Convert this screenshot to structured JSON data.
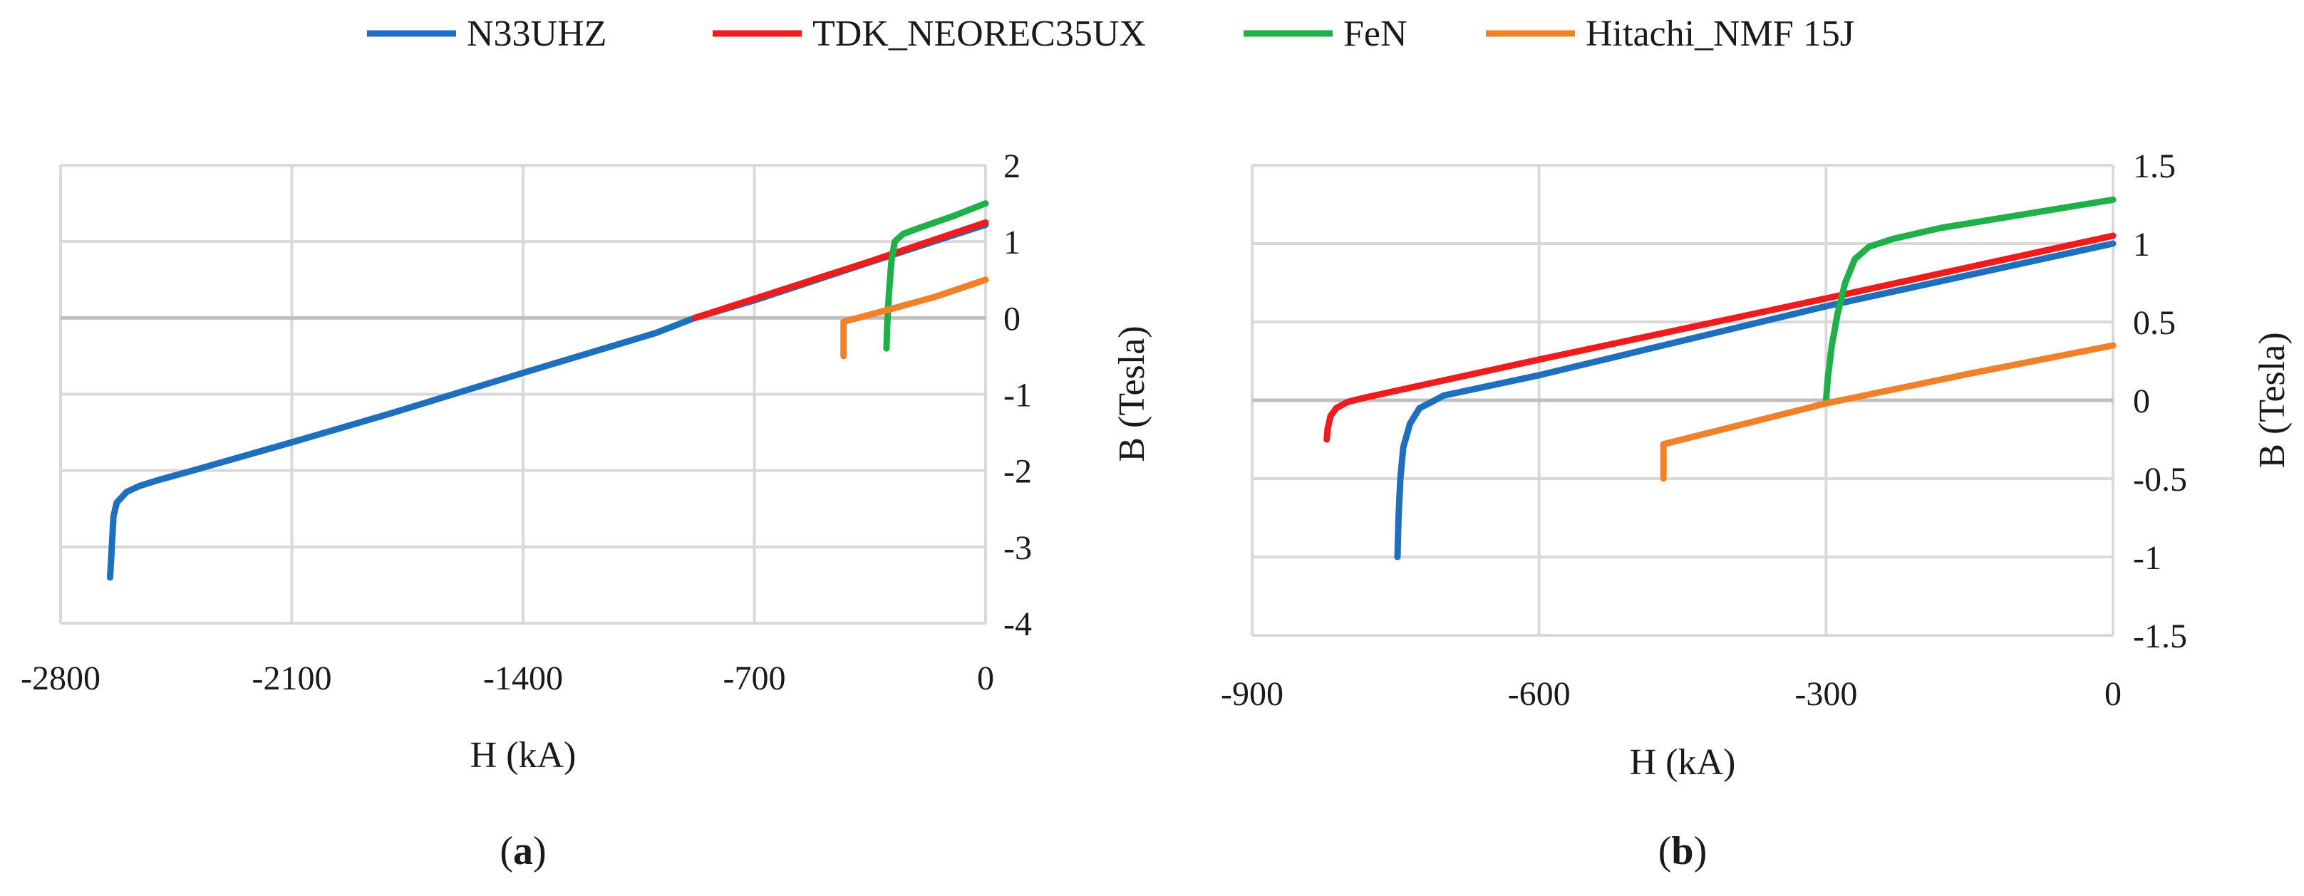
{
  "legend": [
    {
      "name": "N33UHZ",
      "color": "#1f6fbf"
    },
    {
      "name": "TDK_NEOREC35UX",
      "color": "#ee1c1c"
    },
    {
      "name": "FeN",
      "color": "#1fb04a"
    },
    {
      "name": "Hitachi_NMF 15J",
      "color": "#f0802a"
    }
  ],
  "chart_data": [
    {
      "type": "line",
      "caption": {
        "open": "(",
        "letter": "a",
        "close": ")"
      },
      "xlabel": "H (kA)",
      "ylabel": "B (Tesla)",
      "xlim": [
        -2800,
        0
      ],
      "ylim": [
        -4,
        2
      ],
      "xticks": [
        -2800,
        -2100,
        -1400,
        -700,
        0
      ],
      "yticks": [
        2,
        1,
        0,
        -1,
        -2,
        -3,
        -4
      ],
      "grid": true,
      "y_axis_side": "right",
      "series": [
        {
          "name": "N33UHZ",
          "color": "#1f6fbf",
          "points": [
            [
              -2650,
              -3.4
            ],
            [
              -2645,
              -3.0
            ],
            [
              -2640,
              -2.6
            ],
            [
              -2630,
              -2.42
            ],
            [
              -2600,
              -2.28
            ],
            [
              -2560,
              -2.2
            ],
            [
              -2500,
              -2.12
            ],
            [
              -2400,
              -2.0
            ],
            [
              -2100,
              -1.63
            ],
            [
              -1800,
              -1.25
            ],
            [
              -1400,
              -0.72
            ],
            [
              -1000,
              -0.2
            ],
            [
              -880,
              0.0
            ],
            [
              -700,
              0.23
            ],
            [
              -350,
              0.73
            ],
            [
              0,
              1.22
            ]
          ]
        },
        {
          "name": "TDK_NEOREC35UX",
          "color": "#ee1c1c",
          "points": [
            [
              -880,
              0.0
            ],
            [
              -700,
              0.25
            ],
            [
              -350,
              0.74
            ],
            [
              0,
              1.25
            ]
          ]
        },
        {
          "name": "FeN",
          "color": "#1fb04a",
          "points": [
            [
              -300,
              -0.4
            ],
            [
              -298,
              -0.1
            ],
            [
              -293,
              0.3
            ],
            [
              -285,
              0.75
            ],
            [
              -275,
              1.0
            ],
            [
              -250,
              1.1
            ],
            [
              -200,
              1.18
            ],
            [
              -100,
              1.33
            ],
            [
              0,
              1.5
            ]
          ]
        },
        {
          "name": "Hitachi_NMF 15J",
          "color": "#f0802a",
          "points": [
            [
              -430,
              -0.5
            ],
            [
              -430,
              -0.05
            ],
            [
              -300,
              0.1
            ],
            [
              -150,
              0.28
            ],
            [
              0,
              0.5
            ]
          ]
        }
      ]
    },
    {
      "type": "line",
      "caption": {
        "open": "(",
        "letter": "b",
        "close": ")"
      },
      "xlabel": "H (kA)",
      "ylabel": "B (Tesla)",
      "xlim": [
        -900,
        0
      ],
      "ylim": [
        -1.5,
        1.5
      ],
      "xticks": [
        -900,
        -600,
        -300,
        0
      ],
      "yticks": [
        "1.5",
        "1",
        "0.5",
        "0",
        "-0.5",
        "-1",
        "-1.5"
      ],
      "grid": true,
      "y_axis_side": "right",
      "series": [
        {
          "name": "N33UHZ",
          "color": "#1f6fbf",
          "points": [
            [
              -748,
              -1.0
            ],
            [
              -747,
              -0.75
            ],
            [
              -745,
              -0.5
            ],
            [
              -742,
              -0.3
            ],
            [
              -735,
              -0.15
            ],
            [
              -725,
              -0.05
            ],
            [
              -712,
              -0.01
            ],
            [
              -700,
              0.03
            ],
            [
              -600,
              0.16
            ],
            [
              -300,
              0.6
            ],
            [
              0,
              1.0
            ]
          ]
        },
        {
          "name": "TDK_NEOREC35UX",
          "color": "#ee1c1c",
          "points": [
            [
              -822,
              -0.25
            ],
            [
              -821,
              -0.18
            ],
            [
              -818,
              -0.1
            ],
            [
              -812,
              -0.05
            ],
            [
              -800,
              -0.01
            ],
            [
              -780,
              0.02
            ],
            [
              -600,
              0.26
            ],
            [
              -300,
              0.65
            ],
            [
              0,
              1.05
            ]
          ]
        },
        {
          "name": "FeN",
          "color": "#1fb04a",
          "points": [
            [
              -300,
              0.0
            ],
            [
              -298,
              0.15
            ],
            [
              -294,
              0.35
            ],
            [
              -288,
              0.55
            ],
            [
              -280,
              0.75
            ],
            [
              -270,
              0.9
            ],
            [
              -255,
              0.98
            ],
            [
              -230,
              1.03
            ],
            [
              -180,
              1.1
            ],
            [
              -100,
              1.18
            ],
            [
              0,
              1.28
            ]
          ]
        },
        {
          "name": "Hitachi_NMF 15J",
          "color": "#f0802a",
          "points": [
            [
              -470,
              -0.5
            ],
            [
              -470,
              -0.28
            ],
            [
              -300,
              -0.02
            ],
            [
              -150,
              0.17
            ],
            [
              0,
              0.35
            ]
          ]
        }
      ]
    }
  ]
}
